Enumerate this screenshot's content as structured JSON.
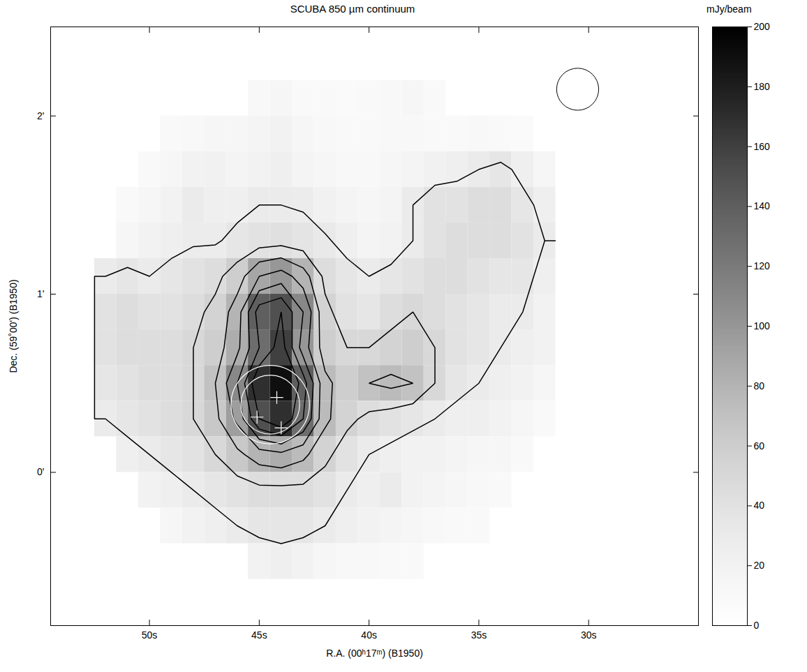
{
  "chart_data": {
    "type": "heatmap",
    "title": "SCUBA 850 µm continuum",
    "x_label": "R.A. (00ʰ17ᵐ) (B1950)",
    "y_label": "Dec. (59˚00') (B1950)",
    "xlim": [
      54.5,
      25
    ],
    "ylim": [
      -0.86,
      2.5
    ],
    "xticks": [
      {
        "value": 50,
        "label": "50s"
      },
      {
        "value": 45,
        "label": "45s"
      },
      {
        "value": 40,
        "label": "40s"
      },
      {
        "value": 35,
        "label": "35s"
      },
      {
        "value": 30,
        "label": "30s"
      }
    ],
    "yticks": [
      {
        "value": 0,
        "label": "0'"
      },
      {
        "value": 1,
        "label": "1'"
      },
      {
        "value": 2,
        "label": "2'"
      }
    ],
    "ra": [
      52,
      51,
      50,
      49,
      48,
      47,
      46,
      45,
      44,
      43,
      42,
      41,
      40,
      39,
      38,
      37,
      36,
      35,
      34,
      33,
      32
    ],
    "dec": [
      2.1,
      1.9,
      1.7,
      1.5,
      1.3,
      1.1,
      0.9,
      0.7,
      0.5,
      0.3,
      0.1,
      -0.1,
      -0.3,
      -0.5
    ],
    "cells": [
      [
        null,
        null,
        null,
        null,
        null,
        null,
        null,
        12,
        15,
        10,
        10,
        8,
        10,
        12,
        15,
        10,
        null,
        null,
        null,
        null,
        null
      ],
      [
        null,
        null,
        null,
        10,
        12,
        15,
        15,
        18,
        20,
        15,
        12,
        10,
        10,
        12,
        12,
        10,
        10,
        12,
        10,
        8,
        null
      ],
      [
        null,
        null,
        10,
        15,
        20,
        22,
        18,
        20,
        25,
        18,
        15,
        12,
        12,
        15,
        18,
        22,
        25,
        30,
        35,
        25,
        15
      ],
      [
        null,
        10,
        15,
        20,
        30,
        25,
        25,
        30,
        30,
        28,
        22,
        18,
        15,
        18,
        30,
        40,
        40,
        45,
        45,
        35,
        25
      ],
      [
        null,
        15,
        20,
        25,
        28,
        28,
        35,
        40,
        42,
        38,
        32,
        25,
        18,
        20,
        30,
        40,
        45,
        45,
        45,
        40,
        30
      ],
      [
        30,
        35,
        30,
        35,
        40,
        45,
        60,
        90,
        100,
        80,
        45,
        35,
        30,
        35,
        40,
        45,
        45,
        40,
        35,
        35,
        25
      ],
      [
        40,
        45,
        40,
        40,
        45,
        55,
        80,
        140,
        150,
        110,
        55,
        40,
        35,
        45,
        50,
        45,
        40,
        35,
        30,
        30,
        20
      ],
      [
        40,
        45,
        45,
        45,
        50,
        60,
        85,
        130,
        160,
        100,
        60,
        50,
        50,
        55,
        60,
        50,
        40,
        35,
        30,
        25,
        20
      ],
      [
        35,
        40,
        45,
        45,
        50,
        70,
        110,
        170,
        190,
        140,
        75,
        60,
        70,
        75,
        70,
        50,
        35,
        30,
        25,
        20,
        15
      ],
      [
        30,
        35,
        40,
        45,
        50,
        65,
        95,
        150,
        170,
        130,
        75,
        55,
        45,
        40,
        35,
        30,
        25,
        25,
        20,
        15,
        10
      ],
      [
        null,
        25,
        30,
        35,
        40,
        50,
        65,
        80,
        85,
        75,
        55,
        40,
        30,
        25,
        20,
        20,
        18,
        15,
        15,
        10,
        null
      ],
      [
        null,
        null,
        20,
        25,
        30,
        35,
        40,
        45,
        45,
        45,
        40,
        30,
        25,
        30,
        20,
        18,
        15,
        12,
        10,
        null,
        null
      ],
      [
        null,
        null,
        null,
        15,
        20,
        25,
        30,
        35,
        35,
        35,
        30,
        25,
        20,
        18,
        15,
        12,
        10,
        10,
        null,
        null,
        null
      ],
      [
        null,
        null,
        null,
        null,
        null,
        null,
        null,
        20,
        25,
        20,
        15,
        12,
        12,
        10,
        10,
        null,
        null,
        null,
        null,
        null,
        null
      ]
    ],
    "contour_levels": [
      30,
      50,
      70,
      90,
      110,
      130,
      150
    ],
    "colorbar": {
      "label": "mJy/beam",
      "range": [
        0,
        200
      ],
      "ticks": [
        0,
        20,
        40,
        60,
        80,
        100,
        120,
        140,
        160,
        180,
        200
      ]
    },
    "sources": [
      {
        "ra": 44.2,
        "dec": 0.42
      },
      {
        "ra": 45.1,
        "dec": 0.31
      },
      {
        "ra": 44.0,
        "dec": 0.25
      }
    ],
    "circles": [
      {
        "ra": 44.5,
        "dec": 0.38,
        "radius": 0.22
      },
      {
        "ra": 44.5,
        "dec": 0.38,
        "radius": 0.165
      }
    ],
    "beam": {
      "ra": 30.5,
      "dec": 2.15,
      "radius": 0.118
    }
  }
}
